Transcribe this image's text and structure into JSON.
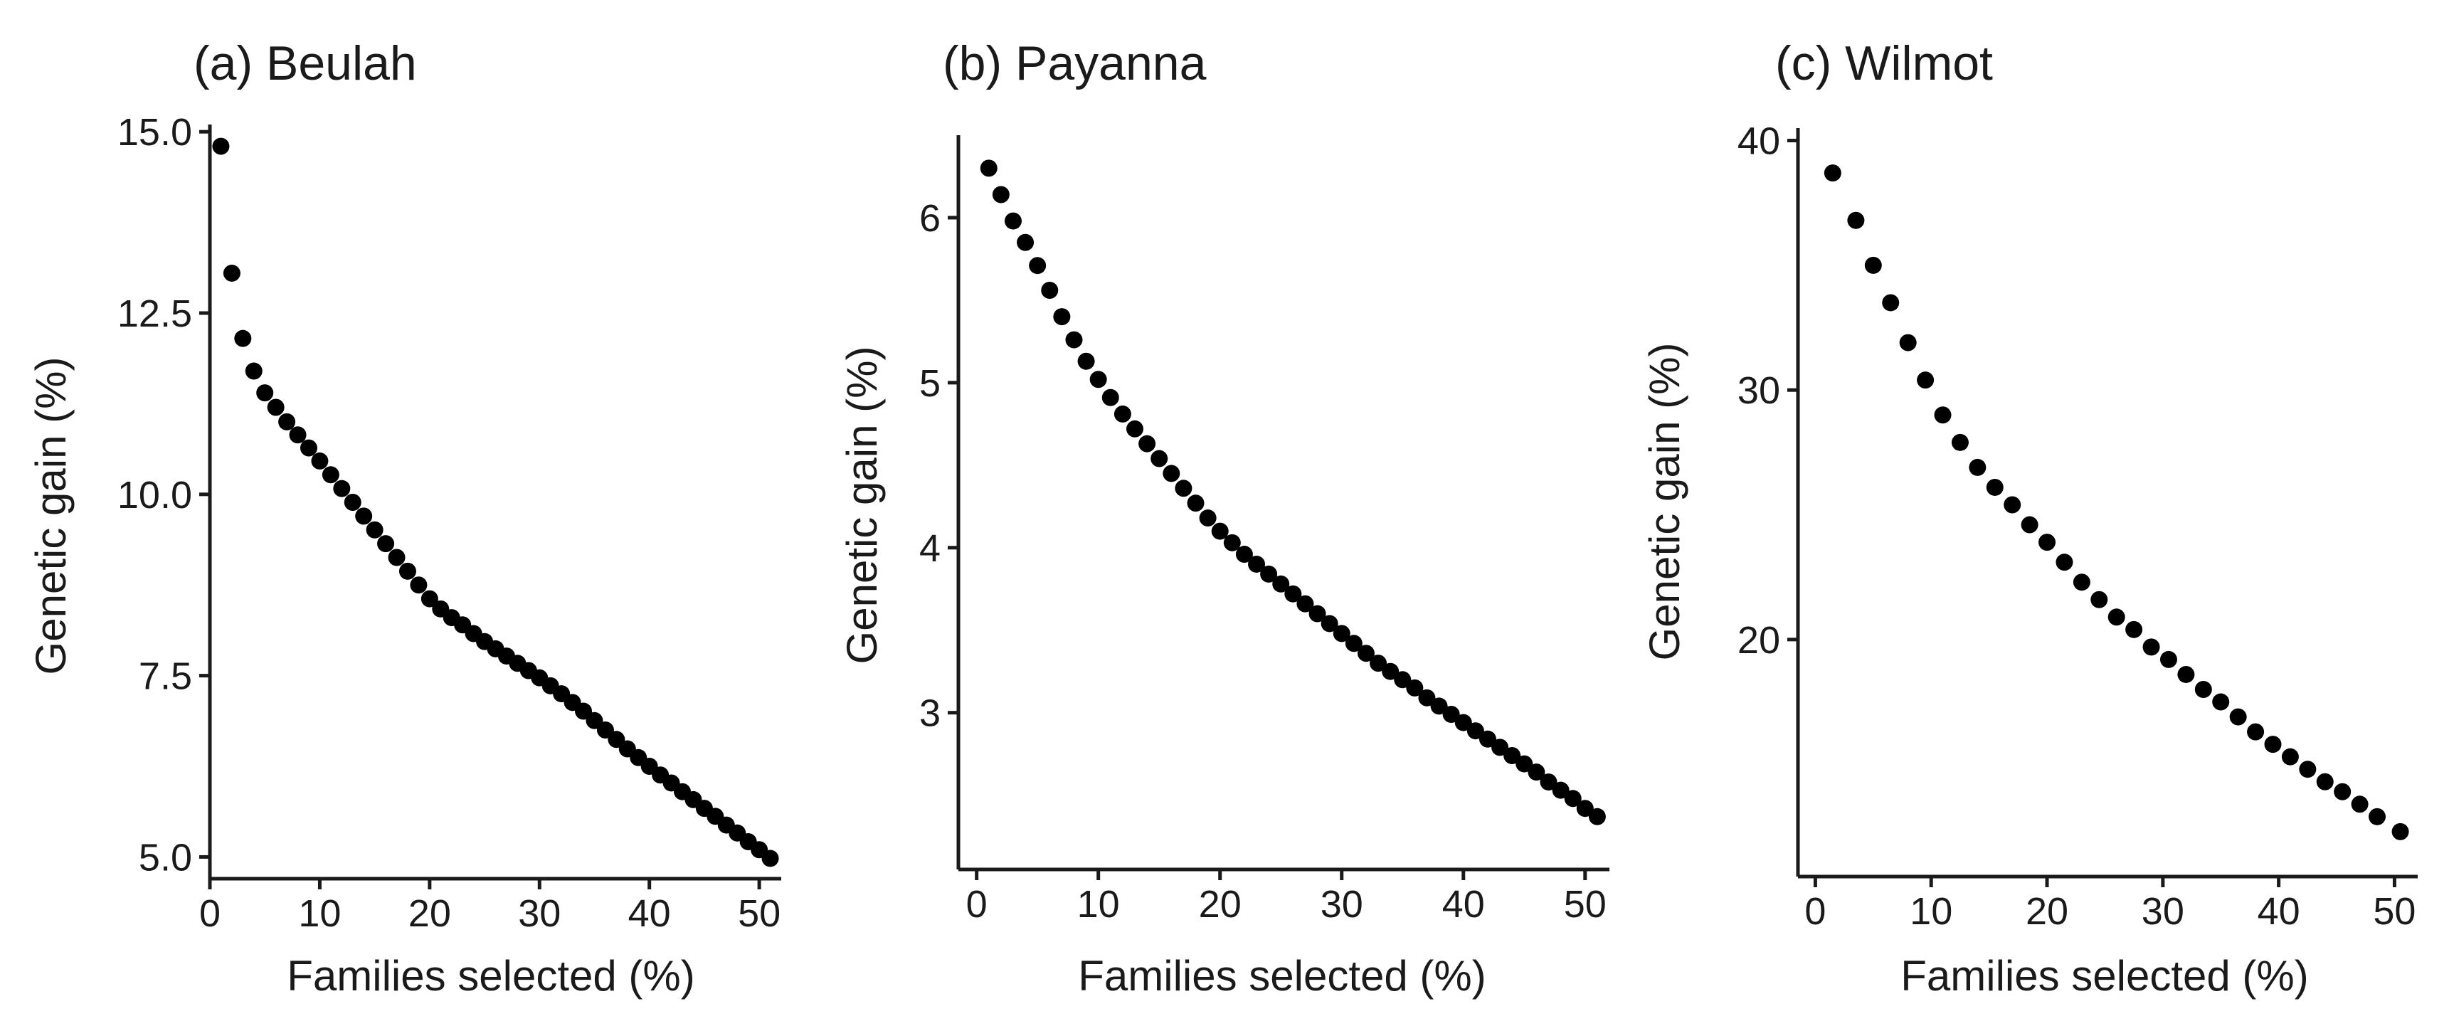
{
  "chart_data": [
    {
      "type": "scatter",
      "title": "(a) Beulah",
      "xlabel": "Families selected (%)",
      "ylabel": "Genetic gain (%)",
      "xlim": [
        0,
        52
      ],
      "ylim": [
        4.7,
        15.1
      ],
      "xticks": [
        0,
        10,
        20,
        30,
        40,
        50
      ],
      "xtick_labels": [
        "0",
        "10",
        "20",
        "30",
        "40",
        "50"
      ],
      "yticks": [
        5.0,
        7.5,
        10.0,
        12.5,
        15.0
      ],
      "ytick_labels": [
        "5.0",
        "7.5",
        "10.0",
        "12.5",
        "15.0"
      ],
      "x": [
        1,
        2,
        3,
        4,
        5,
        6,
        7,
        8,
        9,
        10,
        11,
        12,
        13,
        14,
        15,
        16,
        17,
        18,
        19,
        20,
        21,
        22,
        23,
        24,
        25,
        26,
        27,
        28,
        29,
        30,
        31,
        32,
        33,
        34,
        35,
        36,
        37,
        38,
        39,
        40,
        41,
        42,
        43,
        44,
        45,
        46,
        47,
        48,
        49,
        50,
        51
      ],
      "y": [
        14.8,
        13.05,
        12.15,
        11.7,
        11.4,
        11.2,
        11.0,
        10.82,
        10.64,
        10.46,
        10.27,
        10.08,
        9.89,
        9.7,
        9.51,
        9.32,
        9.13,
        8.94,
        8.75,
        8.56,
        8.42,
        8.3,
        8.2,
        8.08,
        7.97,
        7.87,
        7.77,
        7.67,
        7.57,
        7.47,
        7.36,
        7.25,
        7.13,
        7.01,
        6.88,
        6.75,
        6.62,
        6.49,
        6.37,
        6.25,
        6.13,
        6.02,
        5.9,
        5.79,
        5.67,
        5.56,
        5.44,
        5.33,
        5.21,
        5.1,
        4.98
      ]
    },
    {
      "type": "scatter",
      "title": "(b) Payanna",
      "xlabel": "Families selected (%)",
      "ylabel": "Genetic gain (%)",
      "xlim": [
        -1.5,
        52
      ],
      "ylim": [
        2.05,
        6.5
      ],
      "xticks": [
        0,
        10,
        20,
        30,
        40,
        50
      ],
      "xtick_labels": [
        "0",
        "10",
        "20",
        "30",
        "40",
        "50"
      ],
      "yticks": [
        3,
        4,
        5,
        6
      ],
      "ytick_labels": [
        "3",
        "4",
        "5",
        "6"
      ],
      "x": [
        1,
        2,
        3,
        4,
        5,
        6,
        7,
        8,
        9,
        10,
        11,
        12,
        13,
        14,
        15,
        16,
        17,
        18,
        19,
        20,
        21,
        22,
        23,
        24,
        25,
        26,
        27,
        28,
        29,
        30,
        31,
        32,
        33,
        34,
        35,
        36,
        37,
        38,
        39,
        40,
        41,
        42,
        43,
        44,
        45,
        46,
        47,
        48,
        49,
        50,
        51
      ],
      "y": [
        6.3,
        6.14,
        5.98,
        5.85,
        5.71,
        5.56,
        5.4,
        5.26,
        5.13,
        5.02,
        4.91,
        4.81,
        4.72,
        4.63,
        4.54,
        4.45,
        4.36,
        4.27,
        4.18,
        4.1,
        4.03,
        3.96,
        3.9,
        3.84,
        3.78,
        3.72,
        3.66,
        3.6,
        3.54,
        3.48,
        3.42,
        3.36,
        3.3,
        3.25,
        3.2,
        3.15,
        3.09,
        3.04,
        2.99,
        2.94,
        2.89,
        2.84,
        2.79,
        2.74,
        2.69,
        2.64,
        2.58,
        2.53,
        2.48,
        2.42,
        2.37
      ]
    },
    {
      "type": "scatter",
      "title": "(c) Wilmot",
      "xlabel": "Families selected (%)",
      "ylabel": "Genetic gain (%)",
      "xlim": [
        -1.5,
        52
      ],
      "ylim": [
        10.5,
        40.5
      ],
      "xticks": [
        0,
        10,
        20,
        30,
        40,
        50
      ],
      "xtick_labels": [
        "0",
        "10",
        "20",
        "30",
        "40",
        "50"
      ],
      "yticks": [
        20,
        30,
        40
      ],
      "ytick_labels": [
        "20",
        "30",
        "40"
      ],
      "x": [
        1.5,
        3.5,
        5,
        6.5,
        8,
        9.5,
        11,
        12.5,
        14,
        15.5,
        17,
        18.5,
        20,
        21.5,
        23,
        24.5,
        26,
        27.5,
        29,
        30.5,
        32,
        33.5,
        35,
        36.5,
        38,
        39.5,
        41,
        42.5,
        44,
        45.5,
        47,
        48.5,
        50.5
      ],
      "y": [
        38.7,
        36.8,
        35.0,
        33.5,
        31.9,
        30.4,
        29.0,
        27.9,
        26.9,
        26.1,
        25.4,
        24.6,
        23.9,
        23.1,
        22.3,
        21.6,
        20.9,
        20.4,
        19.7,
        19.2,
        18.6,
        18.0,
        17.5,
        16.9,
        16.3,
        15.8,
        15.3,
        14.8,
        14.3,
        13.9,
        13.4,
        12.9,
        12.3
      ]
    }
  ]
}
